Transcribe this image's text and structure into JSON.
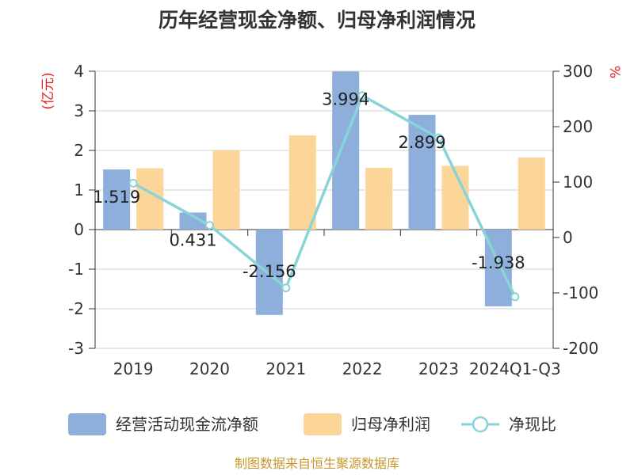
{
  "chart_data": {
    "type": "bar",
    "title": "历年经营现金净额、归母净利润情况",
    "ylabel_left": "(亿元)",
    "ylabel_right": "%",
    "categories": [
      "2019",
      "2020",
      "2021",
      "2022",
      "2023",
      "2024Q1-Q3"
    ],
    "ylim_left": [
      -3,
      4
    ],
    "yticks_left": [
      "4",
      "3",
      "2",
      "1",
      "0",
      "-1",
      "-2",
      "-3"
    ],
    "ylim_right": [
      -200,
      300
    ],
    "yticks_right": [
      "300",
      "200",
      "100",
      "0",
      "-100",
      "-200"
    ],
    "series": [
      {
        "name": "经营活动现金流净额",
        "type": "bar",
        "axis": "left",
        "values": [
          1.519,
          0.431,
          -2.156,
          3.994,
          2.899,
          -1.938
        ],
        "labels": [
          "1.519",
          "0.431",
          "-2.156",
          "3.994",
          "2.899",
          "-1.938"
        ]
      },
      {
        "name": "归母净利润",
        "type": "bar",
        "axis": "left",
        "values": [
          1.55,
          2.0,
          2.38,
          1.56,
          1.61,
          1.82
        ]
      },
      {
        "name": "净现比",
        "type": "line",
        "axis": "right",
        "values": [
          98,
          22,
          -91,
          256,
          180,
          -107
        ]
      }
    ],
    "colors": {
      "bar1": "#8eaedb",
      "bar2": "#fcd699",
      "line": "#88d4d8",
      "grid": "#d0d0d0",
      "axis": "#333333",
      "unit": "#e02020"
    },
    "legend_position": "bottom",
    "grid": true,
    "source": "制图数据来自恒生聚源数据库"
  }
}
